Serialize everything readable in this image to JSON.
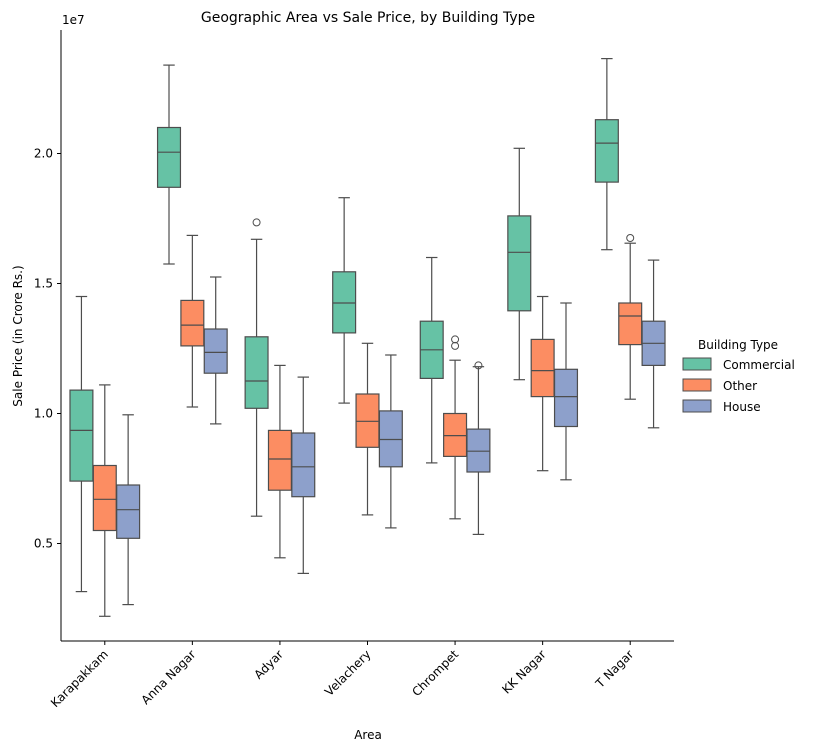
{
  "chart_data": {
    "type": "box",
    "title": "Geographic Area vs Sale Price, by Building Type",
    "xlabel": "Area",
    "ylabel": "Sale Price (in Crore Rs.)",
    "y_offset_label": "1e7",
    "ylim": [
      1250000,
      24750000
    ],
    "yticks": [
      5000000,
      10000000,
      15000000,
      20000000
    ],
    "ytick_labels": [
      "0.5",
      "1.0",
      "1.5",
      "2.0"
    ],
    "categories": [
      "Karapakkam",
      "Anna Nagar",
      "Adyar",
      "Velachery",
      "Chrompet",
      "KK Nagar",
      "T Nagar"
    ],
    "legend": {
      "title": "Building Type",
      "placement": "right"
    },
    "grid": false,
    "series": [
      {
        "name": "Commercial",
        "color": "#66c2a5",
        "boxes": [
          {
            "whisker_low": 3150000,
            "q1": 7400000,
            "median": 9350000,
            "q3": 10900000,
            "whisker_high": 14500000,
            "outliers": []
          },
          {
            "whisker_low": 15750000,
            "q1": 18700000,
            "median": 20050000,
            "q3": 21000000,
            "whisker_high": 23400000,
            "outliers": []
          },
          {
            "whisker_low": 6050000,
            "q1": 10200000,
            "median": 11250000,
            "q3": 12950000,
            "whisker_high": 16700000,
            "outliers": [
              17350000
            ]
          },
          {
            "whisker_low": 10400000,
            "q1": 13100000,
            "median": 14250000,
            "q3": 15450000,
            "whisker_high": 18300000,
            "outliers": []
          },
          {
            "whisker_low": 8100000,
            "q1": 11350000,
            "median": 12450000,
            "q3": 13550000,
            "whisker_high": 16000000,
            "outliers": []
          },
          {
            "whisker_low": 11300000,
            "q1": 13950000,
            "median": 16200000,
            "q3": 17600000,
            "whisker_high": 20200000,
            "outliers": []
          },
          {
            "whisker_low": 16300000,
            "q1": 18900000,
            "median": 20400000,
            "q3": 21300000,
            "whisker_high": 23650000,
            "outliers": []
          }
        ]
      },
      {
        "name": "Other",
        "color": "#fc8d62",
        "boxes": [
          {
            "whisker_low": 2200000,
            "q1": 5500000,
            "median": 6700000,
            "q3": 8000000,
            "whisker_high": 11100000,
            "outliers": []
          },
          {
            "whisker_low": 10250000,
            "q1": 12600000,
            "median": 13400000,
            "q3": 14350000,
            "whisker_high": 16850000,
            "outliers": []
          },
          {
            "whisker_low": 4450000,
            "q1": 7050000,
            "median": 8250000,
            "q3": 9350000,
            "whisker_high": 11850000,
            "outliers": []
          },
          {
            "whisker_low": 6100000,
            "q1": 8700000,
            "median": 9700000,
            "q3": 10750000,
            "whisker_high": 12700000,
            "outliers": []
          },
          {
            "whisker_low": 5950000,
            "q1": 8350000,
            "median": 9150000,
            "q3": 10000000,
            "whisker_high": 12050000,
            "outliers": [
              12600000,
              12850000
            ]
          },
          {
            "whisker_low": 7800000,
            "q1": 10650000,
            "median": 11650000,
            "q3": 12850000,
            "whisker_high": 14500000,
            "outliers": []
          },
          {
            "whisker_low": 10550000,
            "q1": 12650000,
            "median": 13750000,
            "q3": 14250000,
            "whisker_high": 16550000,
            "outliers": [
              16750000
            ]
          }
        ]
      },
      {
        "name": "House",
        "color": "#8da0cb",
        "boxes": [
          {
            "whisker_low": 2650000,
            "q1": 5200000,
            "median": 6300000,
            "q3": 7250000,
            "whisker_high": 9950000,
            "outliers": []
          },
          {
            "whisker_low": 9600000,
            "q1": 11550000,
            "median": 12350000,
            "q3": 13250000,
            "whisker_high": 15250000,
            "outliers": []
          },
          {
            "whisker_low": 3850000,
            "q1": 6800000,
            "median": 7950000,
            "q3": 9250000,
            "whisker_high": 11400000,
            "outliers": []
          },
          {
            "whisker_low": 5600000,
            "q1": 7950000,
            "median": 9000000,
            "q3": 10100000,
            "whisker_high": 12250000,
            "outliers": []
          },
          {
            "whisker_low": 5350000,
            "q1": 7750000,
            "median": 8550000,
            "q3": 9400000,
            "whisker_high": 11800000,
            "outliers": [
              11850000
            ]
          },
          {
            "whisker_low": 7450000,
            "q1": 9500000,
            "median": 10650000,
            "q3": 11700000,
            "whisker_high": 14250000,
            "outliers": []
          },
          {
            "whisker_low": 9450000,
            "q1": 11850000,
            "median": 12700000,
            "q3": 13550000,
            "whisker_high": 15900000,
            "outliers": []
          }
        ]
      }
    ]
  }
}
